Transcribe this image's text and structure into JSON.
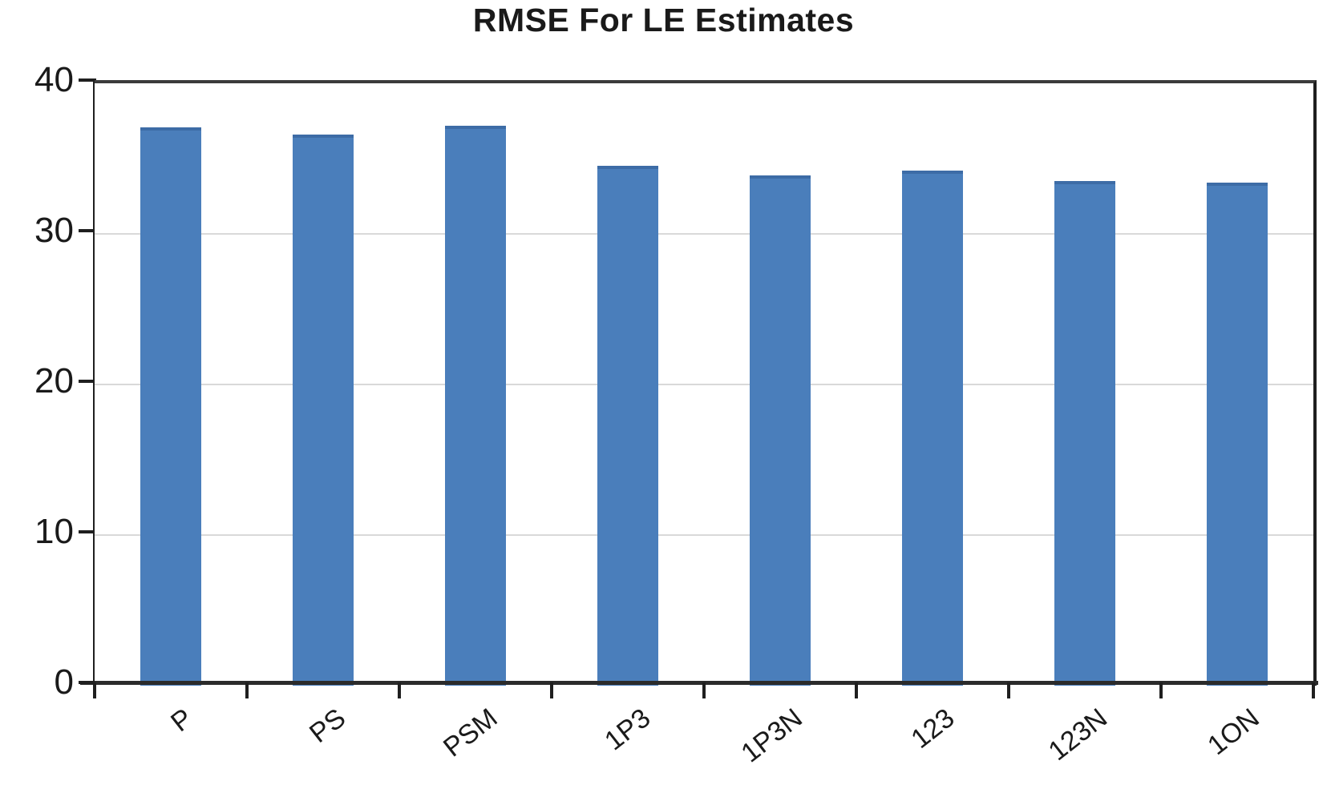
{
  "title": "RMSE For LE Estimates",
  "colors": {
    "bar_fill": "#4a7ebb",
    "bar_edge": "#3d6ca6",
    "axis": "#1f1f1f",
    "gridline": "#d9d9d9",
    "text": "#1a1a1a",
    "background": "#ffffff"
  },
  "chart_data": {
    "type": "bar",
    "title": "RMSE For LE Estimates",
    "categories": [
      "P",
      "PS",
      "PSM",
      "1P3",
      "1P3N",
      "123",
      "123N",
      "1ON"
    ],
    "values": [
      37.1,
      36.6,
      37.2,
      34.5,
      33.9,
      34.2,
      33.5,
      33.4
    ],
    "xlabel": "",
    "ylabel": "",
    "ylim": [
      0,
      40
    ],
    "yticks": [
      0,
      10,
      20,
      30,
      40
    ],
    "ytick_labels": [
      "0",
      "10",
      "20",
      "30",
      "40"
    ],
    "grid": "horizontal",
    "legend": "none",
    "bar_color": "#4a7ebb"
  }
}
